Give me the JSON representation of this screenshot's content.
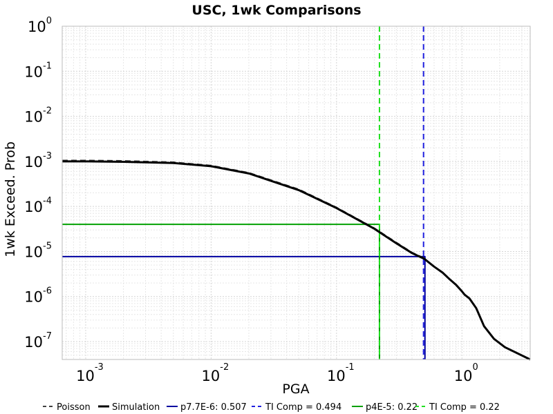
{
  "chart_data": {
    "type": "line",
    "title": "USC, 1wk Comparisons",
    "xlabel": "PGA",
    "ylabel": "1wk Exceed. Prob",
    "xscale": "log",
    "yscale": "log",
    "xlim": [
      0.00065,
      3.5
    ],
    "ylim": [
      4e-08,
      1.0
    ],
    "grid": true,
    "legend_position": "bottom",
    "x_ticks": [
      {
        "value": 0.001,
        "base": "10",
        "exp": "-3"
      },
      {
        "value": 0.01,
        "base": "10",
        "exp": "-2"
      },
      {
        "value": 0.1,
        "base": "10",
        "exp": "-1"
      },
      {
        "value": 1.0,
        "base": "10",
        "exp": "0"
      }
    ],
    "y_ticks": [
      {
        "value": 1.0,
        "base": "10",
        "exp": "0"
      },
      {
        "value": 0.1,
        "base": "10",
        "exp": "-1"
      },
      {
        "value": 0.01,
        "base": "10",
        "exp": "-2"
      },
      {
        "value": 0.001,
        "base": "10",
        "exp": "-3"
      },
      {
        "value": 0.0001,
        "base": "10",
        "exp": "-4"
      },
      {
        "value": 1e-05,
        "base": "10",
        "exp": "-5"
      },
      {
        "value": 1e-06,
        "base": "10",
        "exp": "-6"
      },
      {
        "value": 1e-07,
        "base": "10",
        "exp": "-7"
      }
    ],
    "series": [
      {
        "name": "Poisson",
        "color": "#404040",
        "style": "dashed",
        "x": [
          0.00065,
          0.001,
          0.002,
          0.005,
          0.01,
          0.02,
          0.05,
          0.1,
          0.2,
          0.3,
          0.4,
          0.5
        ],
        "y": [
          0.00105,
          0.00105,
          0.00103,
          0.00096,
          0.00081,
          0.00056,
          0.00024,
          9.5e-05,
          3.3e-05,
          1.58e-05,
          9.5e-06,
          7.1e-06
        ]
      },
      {
        "name": "Simulation",
        "color": "#000000",
        "style": "solid",
        "x": [
          0.00065,
          0.001,
          0.002,
          0.005,
          0.01,
          0.02,
          0.05,
          0.1,
          0.2,
          0.3,
          0.4,
          0.5,
          0.6,
          0.7,
          0.8,
          0.9,
          1.0,
          1.05,
          1.15,
          1.3,
          1.5,
          1.8,
          2.2,
          3.5
        ],
        "y": [
          0.001,
          0.001,
          0.00098,
          0.00092,
          0.00078,
          0.00054,
          0.00023,
          9.2e-05,
          3.2e-05,
          1.52e-05,
          9.2e-06,
          6.9e-06,
          4.6e-06,
          3.4e-06,
          2.4e-06,
          1.8e-06,
          1.3e-06,
          1.1e-06,
          9e-07,
          5.5e-07,
          2.2e-07,
          1.15e-07,
          7.5e-08,
          4e-08
        ]
      },
      {
        "name": "p7.7E-6: 0.507",
        "color": "#0000a0",
        "style": "solid",
        "x": [
          0.00065,
          0.507,
          0.507
        ],
        "y": [
          7.7e-06,
          7.7e-06,
          4e-08
        ]
      },
      {
        "name": "TI Comp = 0.494",
        "color": "#2020e0",
        "style": "dashed",
        "x": [
          0.494,
          0.494
        ],
        "y": [
          1.0,
          4e-08
        ]
      },
      {
        "name": "p4E-5: 0.22",
        "color": "#00a000",
        "style": "solid",
        "x": [
          0.00065,
          0.22,
          0.22
        ],
        "y": [
          4e-05,
          4e-05,
          4e-08
        ]
      },
      {
        "name": "TI Comp = 0.22",
        "color": "#20e020",
        "style": "dashed",
        "x": [
          0.22,
          0.22
        ],
        "y": [
          1.0,
          4e-08
        ]
      }
    ]
  }
}
